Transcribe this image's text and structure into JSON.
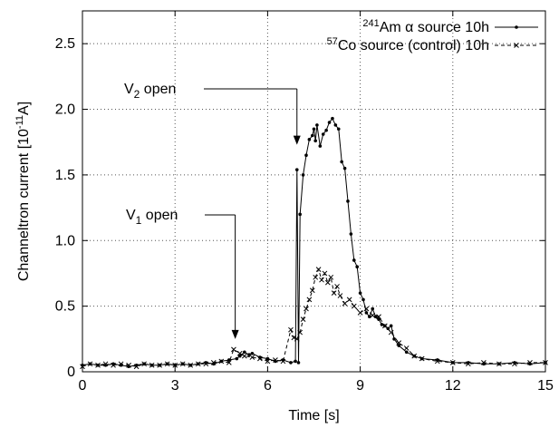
{
  "chart_data": {
    "type": "line",
    "xlabel": "Time [s]",
    "ylabel": "Channeltron current [10-11A]",
    "ylabel_parts": {
      "base": "Channeltron current [10",
      "exp": "-11",
      "unit": "A]"
    },
    "xlim": [
      0,
      15
    ],
    "ylim": [
      0,
      2.75
    ],
    "x_ticks": [
      "0",
      "3",
      "6",
      "9",
      "12",
      "15"
    ],
    "y_ticks": [
      "0",
      "0.5",
      "1.0",
      "1.5",
      "2.0",
      "2.5"
    ],
    "grid": true,
    "legend_position": "top-right",
    "annotations": [
      {
        "id": "v1",
        "label": "V1 open",
        "base": "V",
        "sub": "1",
        "rest": " open",
        "x": 4.95,
        "y": 0.25
      },
      {
        "id": "v2",
        "label": "V2 open",
        "base": "V",
        "sub": "2",
        "rest": " open",
        "x": 6.95,
        "y": 1.73
      }
    ],
    "series": [
      {
        "name": "241Am α source 10h",
        "sup": "241",
        "label": "Am α source 10h",
        "marker": "dot",
        "linestyle": "solid",
        "x": [
          0,
          0.25,
          0.5,
          0.75,
          1,
          1.25,
          1.5,
          1.75,
          2,
          2.25,
          2.5,
          2.75,
          3,
          3.25,
          3.5,
          3.75,
          4,
          4.25,
          4.5,
          4.75,
          5,
          5.1,
          5.25,
          5.4,
          5.5,
          5.75,
          6,
          6.25,
          6.5,
          6.75,
          6.9,
          6.95,
          7.0,
          7.05,
          7.15,
          7.25,
          7.35,
          7.45,
          7.5,
          7.55,
          7.6,
          7.7,
          7.8,
          7.9,
          8.0,
          8.1,
          8.2,
          8.3,
          8.4,
          8.5,
          8.6,
          8.7,
          8.8,
          8.9,
          9.0,
          9.1,
          9.2,
          9.3,
          9.4,
          9.5,
          9.6,
          9.7,
          9.8,
          9.9,
          10.0,
          10.1,
          10.25,
          10.5,
          10.75,
          11,
          11.5,
          12,
          12.5,
          13,
          13.5,
          14,
          14.5,
          15
        ],
        "y": [
          0.05,
          0.06,
          0.05,
          0.05,
          0.06,
          0.05,
          0.04,
          0.05,
          0.06,
          0.05,
          0.05,
          0.06,
          0.05,
          0.06,
          0.05,
          0.06,
          0.07,
          0.06,
          0.08,
          0.09,
          0.1,
          0.12,
          0.15,
          0.13,
          0.14,
          0.11,
          0.1,
          0.08,
          0.09,
          0.07,
          0.08,
          1.54,
          0.07,
          1.2,
          1.5,
          1.65,
          1.77,
          1.8,
          1.85,
          1.76,
          1.88,
          1.72,
          1.81,
          1.84,
          1.9,
          1.93,
          1.88,
          1.85,
          1.6,
          1.55,
          1.3,
          1.05,
          0.85,
          0.8,
          0.6,
          0.55,
          0.45,
          0.42,
          0.48,
          0.42,
          0.4,
          0.36,
          0.35,
          0.33,
          0.35,
          0.25,
          0.2,
          0.15,
          0.12,
          0.1,
          0.09,
          0.07,
          0.07,
          0.06,
          0.06,
          0.07,
          0.06,
          0.07
        ]
      },
      {
        "name": "57Co source (control) 10h",
        "sup": "57",
        "label": "Co source (control) 10h",
        "marker": "x",
        "linestyle": "dashed",
        "x": [
          0,
          0.25,
          0.5,
          0.75,
          1,
          1.25,
          1.5,
          1.75,
          2,
          2.25,
          2.5,
          2.75,
          3,
          3.25,
          3.5,
          3.75,
          4,
          4.25,
          4.5,
          4.75,
          4.9,
          5.1,
          5.25,
          5.5,
          5.75,
          6,
          6.25,
          6.5,
          6.75,
          6.85,
          6.95,
          7.05,
          7.15,
          7.25,
          7.35,
          7.45,
          7.55,
          7.65,
          7.75,
          7.85,
          7.95,
          8.05,
          8.15,
          8.25,
          8.35,
          8.5,
          8.65,
          8.8,
          9.0,
          9.2,
          9.4,
          9.6,
          9.8,
          10.0,
          10.25,
          10.5,
          10.75,
          11,
          11.5,
          12,
          12.5,
          13,
          13.5,
          14,
          14.5,
          15
        ],
        "y": [
          0.04,
          0.06,
          0.05,
          0.06,
          0.05,
          0.06,
          0.05,
          0.04,
          0.06,
          0.05,
          0.05,
          0.06,
          0.05,
          0.06,
          0.05,
          0.06,
          0.06,
          0.07,
          0.08,
          0.07,
          0.17,
          0.14,
          0.12,
          0.11,
          0.1,
          0.08,
          0.09,
          0.08,
          0.32,
          0.26,
          0.25,
          0.3,
          0.4,
          0.48,
          0.55,
          0.62,
          0.72,
          0.78,
          0.7,
          0.75,
          0.68,
          0.72,
          0.6,
          0.65,
          0.58,
          0.52,
          0.55,
          0.5,
          0.45,
          0.48,
          0.43,
          0.42,
          0.35,
          0.3,
          0.22,
          0.18,
          0.12,
          0.1,
          0.08,
          0.07,
          0.06,
          0.07,
          0.06,
          0.06,
          0.07,
          0.07
        ]
      }
    ]
  }
}
